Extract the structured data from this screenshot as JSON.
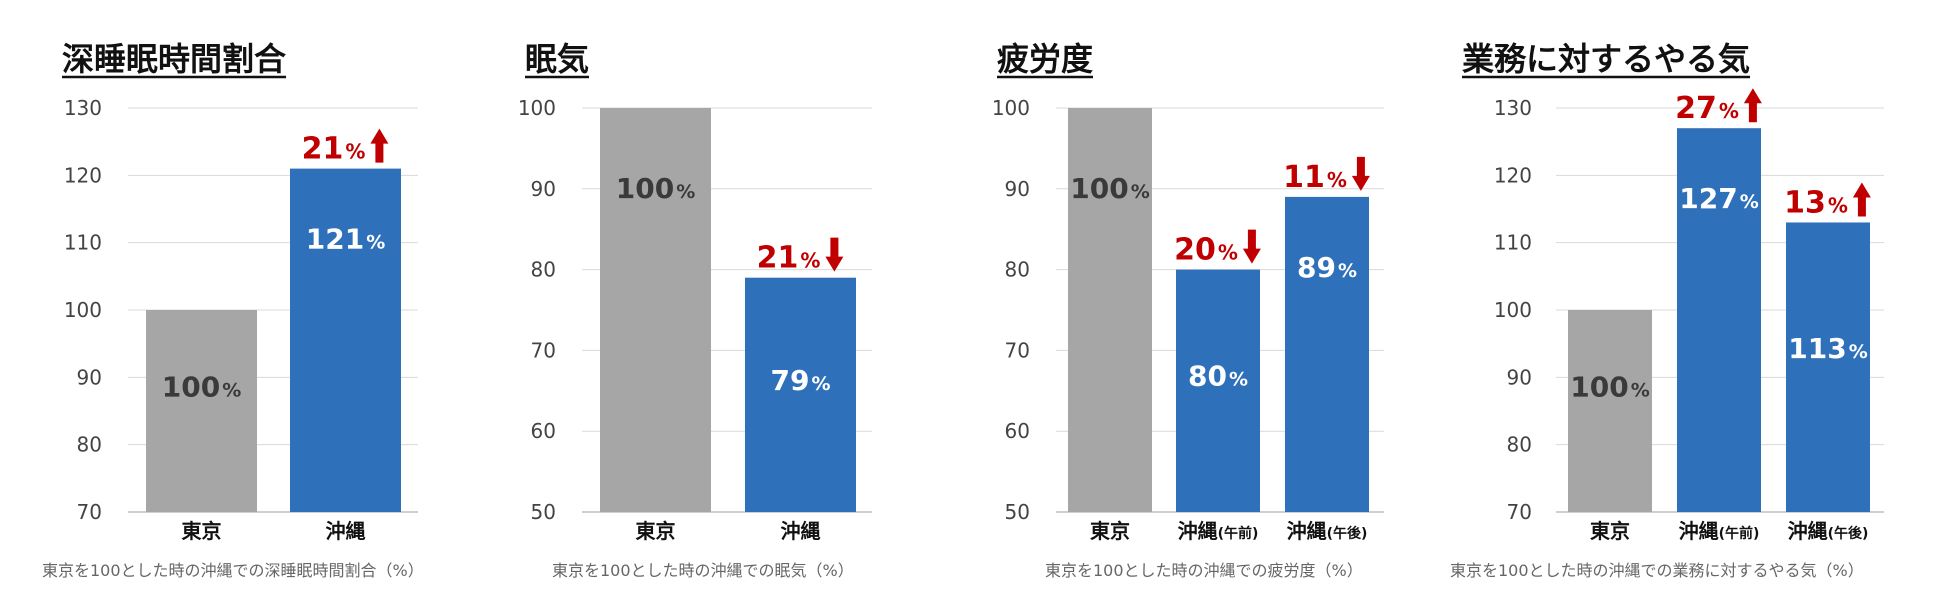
{
  "colors": {
    "base": "#a6a6a6",
    "okinawa": "#2e70ba",
    "delta": "#c00000"
  },
  "pct_unit": "%",
  "chart_data": [
    {
      "type": "bar",
      "title": "深睡眠時間割合",
      "caption": "東京を100とした時の沖縄での深睡眠時間割合（%）",
      "ylim": [
        70,
        130
      ],
      "yticks": [
        70,
        80,
        90,
        100,
        110,
        120,
        130
      ],
      "categories": [
        {
          "main": "東京",
          "sub": ""
        },
        {
          "main": "沖縄",
          "sub": ""
        }
      ],
      "values": [
        100,
        121
      ],
      "value_labels": [
        "100",
        "121"
      ],
      "changes": [
        null,
        {
          "value": "21",
          "direction": "up"
        }
      ]
    },
    {
      "type": "bar",
      "title": "眠気",
      "caption": "東京を100とした時の沖縄での眠気（%）",
      "ylim": [
        50,
        100
      ],
      "yticks": [
        50,
        60,
        70,
        80,
        90,
        100
      ],
      "categories": [
        {
          "main": "東京",
          "sub": ""
        },
        {
          "main": "沖縄",
          "sub": ""
        }
      ],
      "values": [
        100,
        79
      ],
      "value_labels": [
        "100",
        "79"
      ],
      "changes": [
        null,
        {
          "value": "21",
          "direction": "down"
        }
      ]
    },
    {
      "type": "bar",
      "title": "疲労度",
      "caption": "東京を100とした時の沖縄での疲労度（%）",
      "ylim": [
        50,
        100
      ],
      "yticks": [
        50,
        60,
        70,
        80,
        90,
        100
      ],
      "categories": [
        {
          "main": "東京",
          "sub": ""
        },
        {
          "main": "沖縄",
          "sub": "(午前)"
        },
        {
          "main": "沖縄",
          "sub": "(午後)"
        }
      ],
      "values": [
        100,
        80,
        89
      ],
      "value_labels": [
        "100",
        "80",
        "89"
      ],
      "changes": [
        null,
        {
          "value": "20",
          "direction": "down"
        },
        {
          "value": "11",
          "direction": "down"
        }
      ]
    },
    {
      "type": "bar",
      "title": "業務に対するやる気",
      "caption": "東京を100とした時の沖縄での業務に対するやる気（%）",
      "ylim": [
        70,
        130
      ],
      "yticks": [
        70,
        80,
        90,
        100,
        110,
        120,
        130
      ],
      "categories": [
        {
          "main": "東京",
          "sub": ""
        },
        {
          "main": "沖縄",
          "sub": "(午前)"
        },
        {
          "main": "沖縄",
          "sub": "(午後)"
        }
      ],
      "values": [
        100,
        127,
        113
      ],
      "value_labels": [
        "100",
        "127",
        "113"
      ],
      "changes": [
        null,
        {
          "value": "27",
          "direction": "up"
        },
        {
          "value": "13",
          "direction": "up"
        }
      ]
    }
  ]
}
